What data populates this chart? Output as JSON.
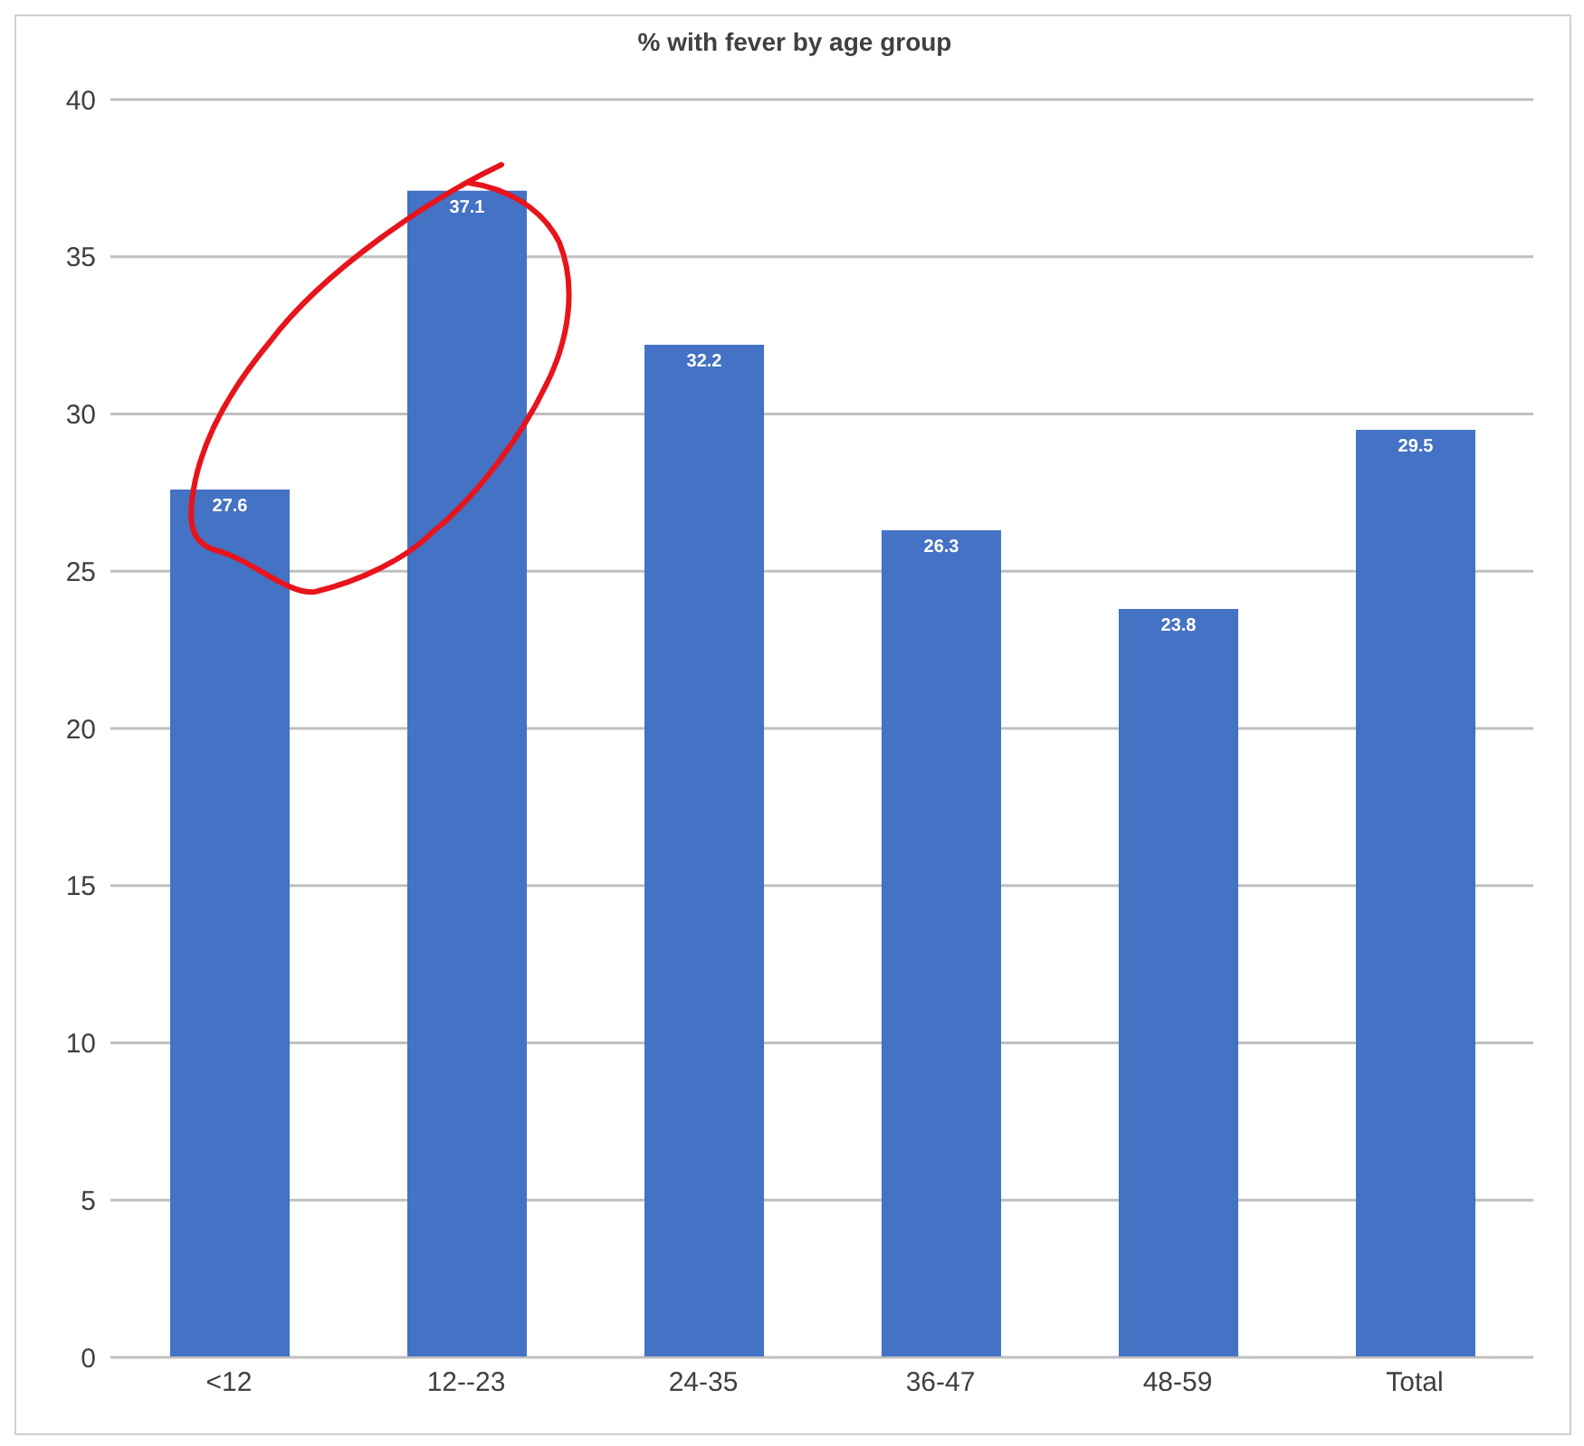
{
  "chart_data": {
    "type": "bar",
    "title": "% with fever by age group",
    "categories": [
      "<12",
      "12--23",
      "24-35",
      "36-47",
      "48-59",
      "Total"
    ],
    "values": [
      27.6,
      37.1,
      32.2,
      26.3,
      23.8,
      29.5
    ],
    "color": "#4472c4",
    "ylim": [
      0,
      40
    ],
    "yticks": [
      0,
      5,
      10,
      15,
      20,
      25,
      30,
      35,
      40
    ],
    "grid": "y",
    "data_labels": true
  }
}
